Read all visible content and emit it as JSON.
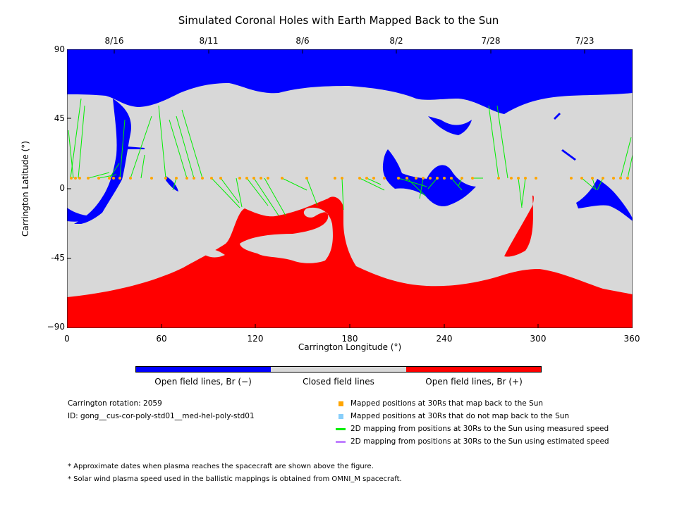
{
  "title": "Simulated Coronal Holes with Earth Mapped Back to the Sun",
  "top_dates": [
    "8/16",
    "8/11",
    "8/6",
    "8/2",
    "7/28",
    "7/23"
  ],
  "y_axis": {
    "label": "Carrington Latitude (°)",
    "ticks": [
      "90",
      "45",
      "0",
      "-45",
      "−90"
    ],
    "range": [
      -90,
      90
    ]
  },
  "x_axis": {
    "label": "Carrington Longitude (°)",
    "ticks": [
      "0",
      "60",
      "120",
      "180",
      "240",
      "300",
      "360"
    ],
    "range": [
      0,
      360
    ]
  },
  "colors": {
    "open_negative": "#0000ff",
    "closed": "#d8d8d8",
    "open_positive": "#ff0000",
    "mapped_point": "#ffa500",
    "unmapped_point": "#87cefa",
    "measured_line": "#00ee00",
    "estimated_line": "#c080ff"
  },
  "color_legend": {
    "open_negative": "Open field lines, Br (−)",
    "closed": "Closed field lines",
    "open_positive": "Open field lines, Br (+)"
  },
  "info": {
    "carrington_rotation": "Carrington rotation: 2059",
    "id": "ID: gong__cus-cor-poly-std01__med-hel-poly-std01"
  },
  "symbol_legend": [
    "Mapped positions at 30Rs that map back to the Sun",
    "Mapped positions at 30Rs that do not map back to the Sun",
    "2D mapping from positions at 30Rs to the Sun using measured speed",
    "2D mapping from positions at 30Rs to the Sun using estimated speed"
  ],
  "notes": [
    "* Approximate dates when plasma reaches the spacecraft are shown above the figure.",
    "* Solar wind plasma speed used in the ballistic mappings is obtained from OMNI_M spacecraft."
  ]
}
